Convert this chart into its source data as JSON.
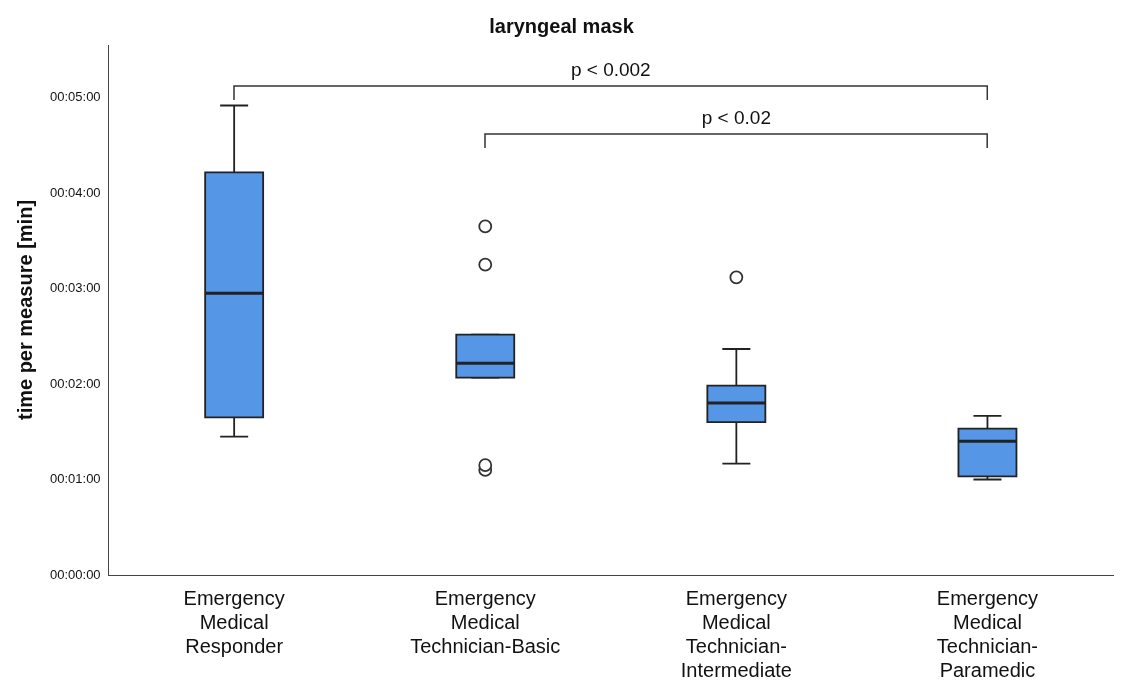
{
  "chart_data": {
    "type": "box",
    "title": "laryngeal mask",
    "ylabel": "time per measure [min]",
    "categories": [
      "Emergency Medical Responder",
      "Emergency Medical Technician-Basic",
      "Emergency Medical Technician-Intermediate",
      "Emergency Medical Technician-Paramedic"
    ],
    "series": [
      {
        "color": "#5596e6",
        "boxes": [
          {
            "low": 87,
            "q1": 99,
            "median": 177,
            "q3": 253,
            "high": 295
          },
          {
            "low": 124,
            "q1": 124,
            "median": 133,
            "q3": 151,
            "high": 151,
            "outliers": [
              219,
              195,
              69,
              66
            ]
          },
          {
            "low": 70,
            "q1": 96,
            "median": 108,
            "q3": 119,
            "high": 142,
            "outliers": [
              187
            ]
          },
          {
            "low": 60,
            "q1": 62,
            "median": 84,
            "q3": 92,
            "high": 100
          }
        ]
      }
    ],
    "ylim": [
      0,
      333
    ],
    "yticks": [
      {
        "value": 0,
        "label": "00:00:00"
      },
      {
        "value": 60,
        "label": "00:01:00"
      },
      {
        "value": 120,
        "label": "00:02:00"
      },
      {
        "value": 180,
        "label": "00:03:00"
      },
      {
        "value": 240,
        "label": "00:04:00"
      },
      {
        "value": 300,
        "label": "00:05:00"
      }
    ],
    "annotations": [
      "p < 0.002",
      "p < 0.02"
    ],
    "grid": false,
    "legend": false
  }
}
